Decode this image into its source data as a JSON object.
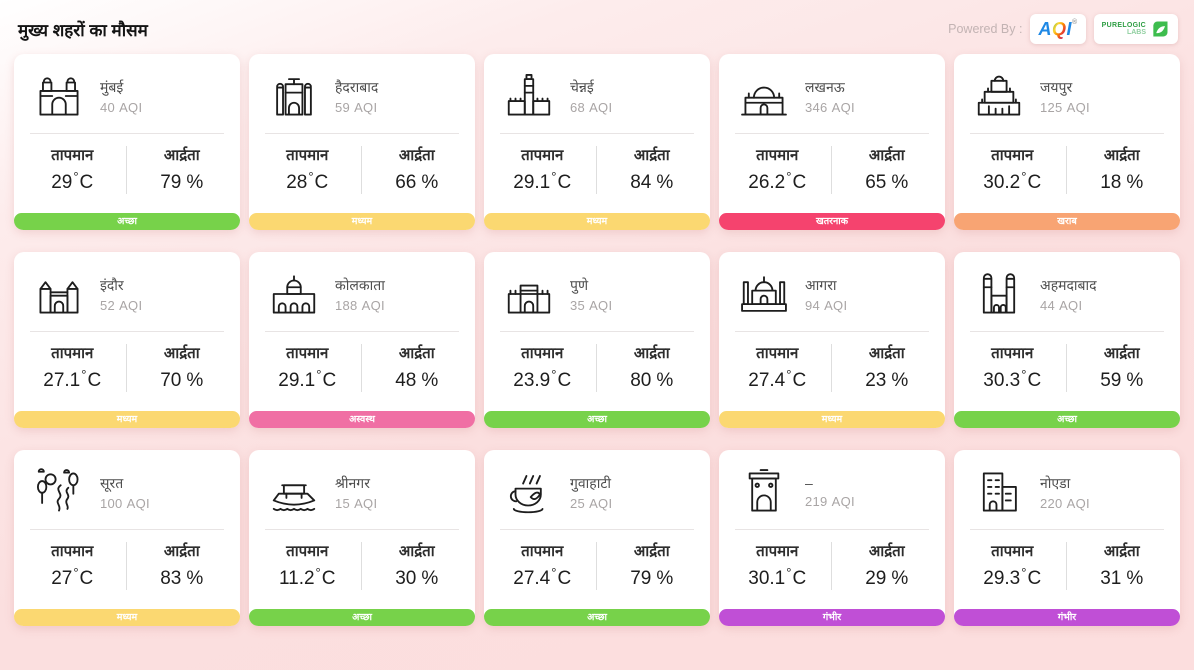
{
  "header": {
    "title": "मुख्य शहरों का मौसम",
    "powered_by": "Powered By :",
    "aqi_logo": {
      "a": "A",
      "q": "Q",
      "i": "I",
      "reg": "®"
    },
    "purelogic": {
      "line1": "PURELOGIC",
      "line2": "LABS"
    }
  },
  "labels": {
    "temperature": "तापमान",
    "humidity": "आर्द्रता",
    "aqi_suffix": "AQI",
    "degree": "°",
    "celsius": "C",
    "percent": "%"
  },
  "status_colors": {
    "good": "#77d24a",
    "moderate": "#fbd871",
    "poor": "#f8a473",
    "unhealthy": "#f06fa4",
    "hazardous": "#f5436e",
    "severe": "#c04fd6"
  },
  "cities": [
    {
      "name": "मुंबई",
      "aqi": "40",
      "temp": "29",
      "humidity": "79",
      "status_label": "अच्छा",
      "status_key": "good",
      "icon": "gateway-of-india-icon"
    },
    {
      "name": "हैदराबाद",
      "aqi": "59",
      "temp": "28",
      "humidity": "66",
      "status_label": "मध्यम",
      "status_key": "moderate",
      "icon": "charminar-icon"
    },
    {
      "name": "चेन्नई",
      "aqi": "68",
      "temp": "29.1",
      "humidity": "84",
      "status_label": "मध्यम",
      "status_key": "moderate",
      "icon": "chennai-tower-icon"
    },
    {
      "name": "लखनऊ",
      "aqi": "346",
      "temp": "26.2",
      "humidity": "65",
      "status_label": "खतरनाक",
      "status_key": "hazardous",
      "icon": "bara-imambara-icon"
    },
    {
      "name": "जयपुर",
      "aqi": "125",
      "temp": "30.2",
      "humidity": "18",
      "status_label": "खराब",
      "status_key": "poor",
      "icon": "hawa-mahal-icon"
    },
    {
      "name": "इंदौर",
      "aqi": "52",
      "temp": "27.1",
      "humidity": "70",
      "status_label": "मध्यम",
      "status_key": "moderate",
      "icon": "rajwada-palace-icon"
    },
    {
      "name": "कोलकाता",
      "aqi": "188",
      "temp": "29.1",
      "humidity": "48",
      "status_label": "अस्वस्थ",
      "status_key": "unhealthy",
      "icon": "victoria-memorial-icon"
    },
    {
      "name": "पुणे",
      "aqi": "35",
      "temp": "23.9",
      "humidity": "80",
      "status_label": "अच्छा",
      "status_key": "good",
      "icon": "shaniwar-wada-icon"
    },
    {
      "name": "आगरा",
      "aqi": "94",
      "temp": "27.4",
      "humidity": "23",
      "status_label": "मध्यम",
      "status_key": "moderate",
      "icon": "taj-mahal-icon"
    },
    {
      "name": "अहमदाबाद",
      "aqi": "44",
      "temp": "30.3",
      "humidity": "59",
      "status_label": "अच्छा",
      "status_key": "good",
      "icon": "mosque-icon"
    },
    {
      "name": "सूरत",
      "aqi": "100",
      "temp": "27",
      "humidity": "83",
      "status_label": "मध्यम",
      "status_key": "moderate",
      "icon": "river-nature-icon"
    },
    {
      "name": "श्रीनगर",
      "aqi": "15",
      "temp": "11.2",
      "humidity": "30",
      "status_label": "अच्छा",
      "status_key": "good",
      "icon": "houseboat-icon"
    },
    {
      "name": "गुवाहाटी",
      "aqi": "25",
      "temp": "27.4",
      "humidity": "79",
      "status_label": "अच्छा",
      "status_key": "good",
      "icon": "tea-cup-icon"
    },
    {
      "name": "–",
      "aqi": "219",
      "temp": "30.1",
      "humidity": "29",
      "status_label": "गंभीर",
      "status_key": "severe",
      "icon": "india-gate-icon"
    },
    {
      "name": "नोएडा",
      "aqi": "220",
      "temp": "29.3",
      "humidity": "31",
      "status_label": "गंभीर",
      "status_key": "severe",
      "icon": "city-buildings-icon"
    }
  ]
}
